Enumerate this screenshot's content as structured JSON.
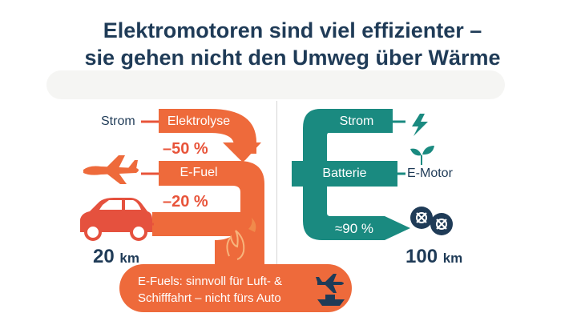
{
  "header": {
    "title_line1": "Elektromotoren sind viel effizienter –",
    "title_line2": "sie gehen nicht den Umweg über Wärme"
  },
  "left_path": {
    "input_label": "Strom",
    "step1_label": "Elektrolyse",
    "loss1": "–50 %",
    "step2_label": "E-Fuel",
    "loss2": "–20 %",
    "range_value": "20",
    "range_unit": "km",
    "icons": [
      "airplane-icon",
      "car-icon",
      "flame-icon"
    ],
    "color": "#ee6a3b"
  },
  "right_path": {
    "input_label": "Strom",
    "step_label": "Batterie",
    "motor_label": "E-Motor",
    "efficiency": "≈90 %",
    "range_value": "100",
    "range_unit": "km",
    "icons": [
      "lightning-icon",
      "sprout-icon",
      "wheels-icon"
    ],
    "color": "#1a8a80"
  },
  "banner": {
    "line1": "E-Fuels: sinnvoll für Luft- &",
    "line2": "Schifffahrt – nicht fürs Auto",
    "icons": [
      "airplane-icon",
      "ship-icon"
    ]
  }
}
